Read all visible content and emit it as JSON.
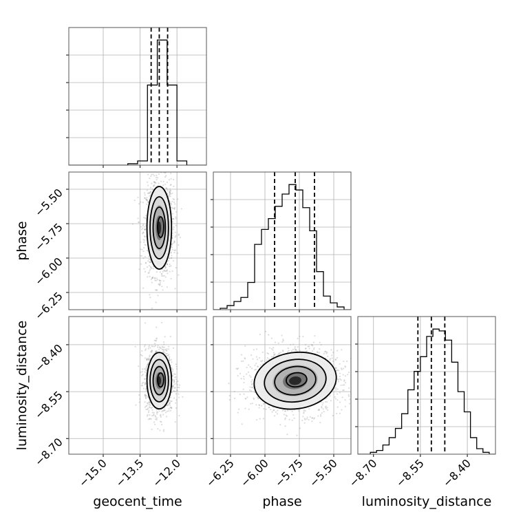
{
  "chart_data": {
    "type": "corner",
    "parameters": [
      {
        "name": "geocent_time",
        "range": [
          -16.4,
          -10.8
        ],
        "ticks": [
          -15.0,
          -13.5,
          -12.0
        ],
        "tick_labels": [
          "−15.0",
          "−13.5",
          "−12.0"
        ],
        "quantiles": [
          -13.05,
          -12.72,
          -12.38
        ],
        "mean": -12.72,
        "std": 0.25,
        "hist_bins": [
          -16.4,
          -16.0,
          -15.6,
          -15.2,
          -14.8,
          -14.4,
          -14.0,
          -13.6,
          -13.2,
          -12.8,
          -12.4,
          -12.0,
          -11.6,
          -11.2,
          -10.8
        ],
        "hist_counts": [
          0,
          0,
          0,
          0,
          0,
          0,
          1,
          3,
          57,
          89,
          57,
          3,
          0,
          0
        ]
      },
      {
        "name": "phase",
        "range": [
          -6.375,
          -5.375
        ],
        "ticks": [
          -6.25,
          -6.0,
          -5.75,
          -5.5
        ],
        "tick_labels": [
          "−6.25",
          "−6.00",
          "−5.75",
          "−5.50"
        ],
        "quantiles": [
          -5.93,
          -5.78,
          -5.64
        ],
        "mean": -5.78,
        "std": 0.15,
        "hist_bins": [
          -6.375,
          -6.325,
          -6.275,
          -6.225,
          -6.175,
          -6.125,
          -6.075,
          -6.025,
          -5.975,
          -5.925,
          -5.875,
          -5.825,
          -5.775,
          -5.725,
          -5.675,
          -5.625,
          -5.575,
          -5.525,
          -5.475,
          -5.425,
          -5.375
        ],
        "hist_counts": [
          0,
          1,
          3,
          6,
          9,
          20,
          48,
          59,
          67,
          76,
          85,
          92,
          88,
          75,
          58,
          28,
          10,
          5,
          2,
          0
        ]
      },
      {
        "name": "luminosity_distance",
        "range": [
          -8.75,
          -8.31
        ],
        "ticks": [
          -8.7,
          -8.55,
          -8.4
        ],
        "tick_labels": [
          "−8.70",
          "−8.55",
          "−8.40"
        ],
        "quantiles": [
          -8.558,
          -8.515,
          -8.472
        ],
        "mean": -8.515,
        "std": 0.045,
        "hist_bins": [
          -8.75,
          -8.73,
          -8.71,
          -8.69,
          -8.67,
          -8.65,
          -8.63,
          -8.61,
          -8.59,
          -8.57,
          -8.55,
          -8.53,
          -8.51,
          -8.49,
          -8.47,
          -8.45,
          -8.43,
          -8.41,
          -8.39,
          -8.37,
          -8.35,
          -8.33,
          -8.31
        ],
        "hist_counts": [
          0,
          0,
          1,
          2,
          5,
          9,
          14,
          22,
          35,
          45,
          53,
          64,
          68,
          67,
          62,
          50,
          34,
          23,
          9,
          3,
          1,
          0
        ]
      }
    ],
    "x_axis_labels": [
      "geocent_time",
      "phase",
      "luminosity_distance"
    ],
    "y_axis_labels": [
      "phase",
      "luminosity_distance"
    ],
    "y_ticks": {
      "phase": [
        -5.5,
        -5.75,
        -6.0,
        -6.25
      ],
      "luminosity_distance": [
        -8.4,
        -8.55,
        -8.7
      ]
    },
    "y_tick_labels": {
      "phase": [
        "−5.50",
        "−5.75",
        "−6.00",
        "−6.25"
      ],
      "luminosity_distance": [
        "−8.40",
        "−8.55",
        "−8.70"
      ]
    },
    "grid": true,
    "colors": {
      "lines": "#000000",
      "samples": "#9a9a9a",
      "grid": "#b0b0b0",
      "spine": "#000000"
    }
  }
}
